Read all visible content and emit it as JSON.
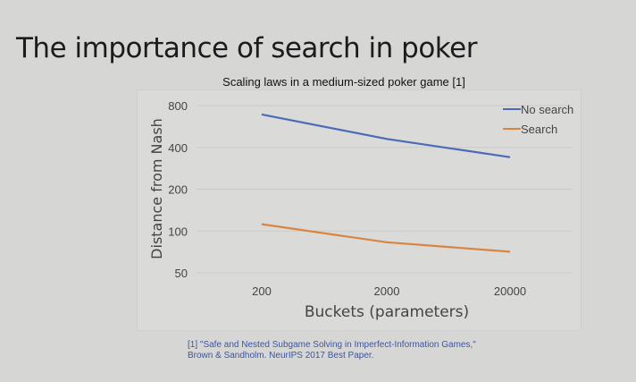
{
  "slide": {
    "title": "The importance of search in poker"
  },
  "reference": {
    "line1": "[1] \"Safe and Nested Subgame Solving in Imperfect-Information Games,\"",
    "line2": "Brown & Sandholm. NeurIPS 2017 Best Paper."
  },
  "chart_data": {
    "type": "line",
    "title": "Scaling laws in a medium-sized poker game [1]",
    "xlabel": "Buckets (parameters)",
    "ylabel": "Distance from Nash",
    "categories": [
      "200",
      "2000",
      "20000"
    ],
    "y_scale": "log2",
    "ylim": [
      50,
      800
    ],
    "yticks": [
      "50",
      "100",
      "200",
      "400",
      "800"
    ],
    "grid": true,
    "legend_placement": "top-right",
    "series": [
      {
        "name": "No search",
        "values": [
          690,
          460,
          340
        ],
        "color": "#4a6bb5"
      },
      {
        "name": "Search",
        "values": [
          112,
          83,
          71
        ],
        "color": "#d9843f"
      }
    ]
  }
}
